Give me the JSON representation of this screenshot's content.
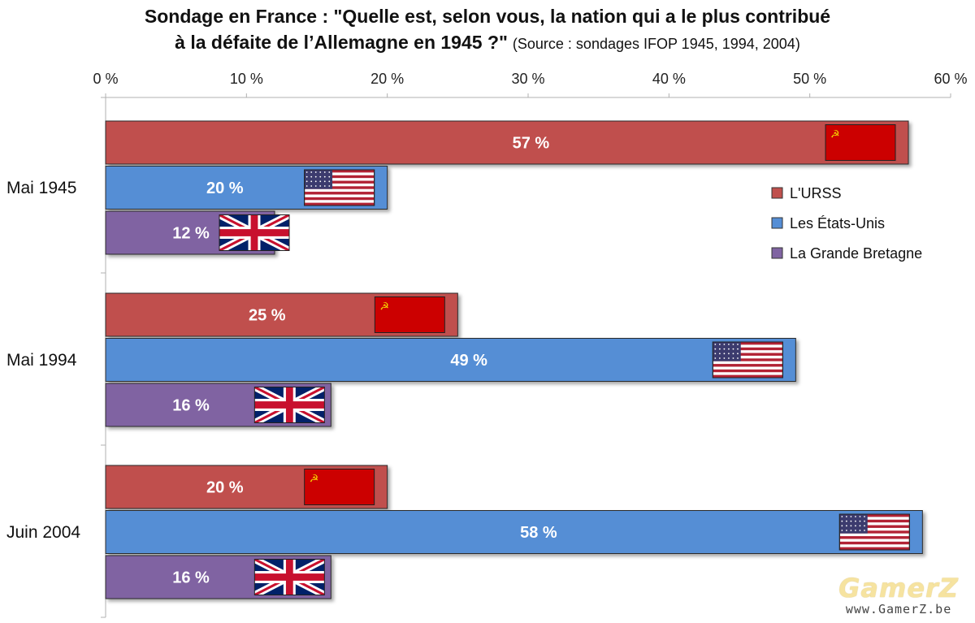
{
  "title": {
    "line1": "Sondage en France : \"Quelle est, selon vous, la nation qui a le plus contribué",
    "line2": "à la défaite de l’Allemagne en 1945 ?\"",
    "source": "(Source : sondages IFOP 1945, 1994, 2004)"
  },
  "chart_data": {
    "type": "bar",
    "orientation": "horizontal",
    "categories": [
      "Mai 1945",
      "Mai 1994",
      "Juin 2004"
    ],
    "series": [
      {
        "name": "L'URSS",
        "values": [
          57,
          25,
          20
        ],
        "labels": [
          "57 %",
          "25 %",
          "20 %"
        ],
        "color": "#c0504d",
        "flag": "ussr-flag-icon"
      },
      {
        "name": "Les États-Unis",
        "values": [
          20,
          49,
          58
        ],
        "labels": [
          "20 %",
          "49 %",
          "58 %"
        ],
        "color": "#558ed5",
        "flag": "usa-flag-icon"
      },
      {
        "name": "La Grande Bretagne",
        "values": [
          12,
          16,
          16
        ],
        "labels": [
          "12 %",
          "16 %",
          "16 %"
        ],
        "color": "#8064a2",
        "flag": "uk-flag-icon"
      }
    ],
    "xlim": [
      0,
      60
    ],
    "xticks": [
      0,
      10,
      20,
      30,
      40,
      50,
      60
    ],
    "xtick_labels": [
      "0 %",
      "10 %",
      "20 %",
      "30 %",
      "40 %",
      "50 %",
      "60 %"
    ],
    "axis_position": "top",
    "grid": false,
    "legend_position": "right"
  },
  "watermark": {
    "logo": "GamerZ",
    "url": "www.GamerZ.be"
  }
}
